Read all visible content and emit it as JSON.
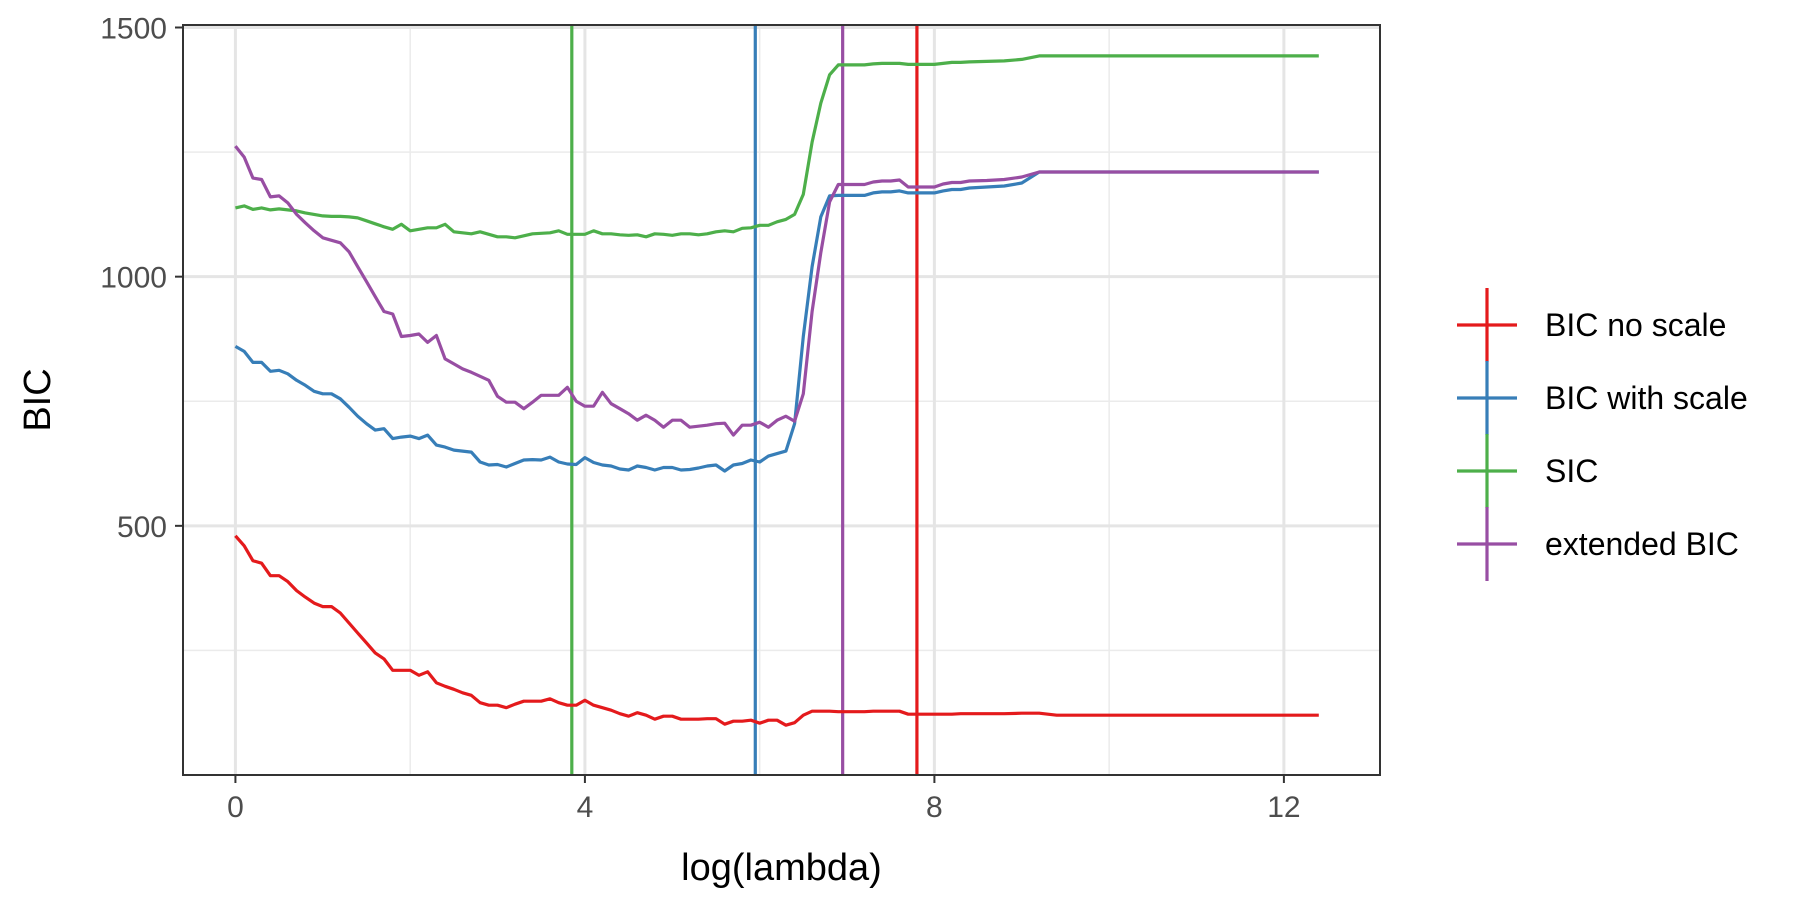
{
  "chart_data": {
    "type": "line",
    "xlabel": "log(lambda)",
    "ylabel": "BIC",
    "xlim": [
      -0.6,
      13.1
    ],
    "ylim": [
      0,
      1505
    ],
    "xticks": [
      0,
      4,
      8,
      12
    ],
    "yticks": [
      500,
      1000,
      1500
    ],
    "grid": true,
    "legend_position": "right",
    "x": [
      0,
      0.1,
      0.2,
      0.3,
      0.4,
      0.5,
      0.6,
      0.7,
      0.8,
      0.9,
      1.0,
      1.1,
      1.2,
      1.3,
      1.4,
      1.5,
      1.6,
      1.7,
      1.8,
      1.9,
      2.0,
      2.1,
      2.2,
      2.3,
      2.4,
      2.5,
      2.6,
      2.7,
      2.8,
      2.9,
      3.0,
      3.1,
      3.2,
      3.3,
      3.4,
      3.5,
      3.6,
      3.7,
      3.8,
      3.9,
      4.0,
      4.1,
      4.2,
      4.3,
      4.4,
      4.5,
      4.6,
      4.7,
      4.8,
      4.9,
      5.0,
      5.1,
      5.2,
      5.3,
      5.4,
      5.5,
      5.6,
      5.7,
      5.8,
      5.9,
      6.0,
      6.1,
      6.2,
      6.3,
      6.4,
      6.5,
      6.6,
      6.7,
      6.8,
      6.9,
      7.0,
      7.1,
      7.2,
      7.3,
      7.4,
      7.5,
      7.6,
      7.7,
      7.8,
      7.9,
      8.0,
      8.1,
      8.2,
      8.3,
      8.4,
      8.6,
      8.8,
      9.0,
      9.2,
      9.4,
      9.6,
      9.8,
      10.0,
      10.2,
      10.4,
      10.6,
      10.8,
      11.0,
      11.2,
      11.4,
      11.6,
      11.8,
      12.0,
      12.2,
      12.4
    ],
    "series": [
      {
        "name": "BIC no scale",
        "color": "#e41a1c",
        "values": [
          480,
          460,
          430,
          425,
          400,
          400,
          388,
          370,
          357,
          345,
          338,
          338,
          325,
          305,
          285,
          265,
          245,
          233,
          210,
          210,
          210,
          200,
          207,
          185,
          178,
          172,
          165,
          160,
          145,
          140,
          140,
          135,
          142,
          148,
          148,
          148,
          153,
          145,
          140,
          140,
          150,
          140,
          135,
          130,
          123,
          118,
          125,
          120,
          112,
          118,
          118,
          112,
          112,
          112,
          113,
          113,
          102,
          108,
          108,
          110,
          104,
          110,
          110,
          100,
          105,
          120,
          128,
          128,
          128,
          127,
          127,
          127,
          127,
          128,
          128,
          128,
          128,
          122,
          122,
          122,
          122,
          122,
          122,
          123,
          123,
          123,
          123,
          124,
          124,
          120,
          120,
          120,
          120,
          120,
          120,
          120,
          120,
          120,
          120,
          120,
          120,
          120,
          120,
          120,
          120
        ]
      },
      {
        "name": "BIC with scale",
        "color": "#377eb8",
        "values": [
          860,
          850,
          828,
          828,
          810,
          812,
          805,
          792,
          782,
          770,
          765,
          765,
          755,
          738,
          720,
          705,
          692,
          695,
          675,
          678,
          680,
          675,
          682,
          662,
          658,
          652,
          650,
          648,
          628,
          622,
          623,
          618,
          625,
          632,
          633,
          632,
          638,
          628,
          624,
          623,
          637,
          627,
          622,
          620,
          614,
          612,
          620,
          617,
          612,
          617,
          617,
          612,
          613,
          616,
          620,
          622,
          610,
          622,
          625,
          632,
          628,
          640,
          645,
          650,
          705,
          880,
          1020,
          1120,
          1162,
          1163,
          1163,
          1163,
          1163,
          1168,
          1170,
          1170,
          1172,
          1168,
          1168,
          1168,
          1168,
          1172,
          1175,
          1175,
          1178,
          1180,
          1182,
          1188,
          1210,
          1210,
          1210,
          1210,
          1210,
          1210,
          1210,
          1210,
          1210,
          1210,
          1210,
          1210,
          1210,
          1210,
          1210,
          1210,
          1210
        ]
      },
      {
        "name": "SIC",
        "color": "#4daf4a",
        "values": [
          1138,
          1142,
          1135,
          1138,
          1134,
          1136,
          1134,
          1132,
          1128,
          1125,
          1122,
          1121,
          1121,
          1120,
          1118,
          1112,
          1106,
          1100,
          1095,
          1105,
          1092,
          1095,
          1098,
          1098,
          1105,
          1090,
          1088,
          1086,
          1090,
          1085,
          1080,
          1080,
          1078,
          1082,
          1086,
          1087,
          1088,
          1092,
          1085,
          1085,
          1085,
          1092,
          1086,
          1086,
          1084,
          1083,
          1084,
          1080,
          1086,
          1085,
          1083,
          1086,
          1086,
          1084,
          1086,
          1090,
          1092,
          1090,
          1097,
          1098,
          1103,
          1103,
          1110,
          1115,
          1125,
          1165,
          1270,
          1348,
          1405,
          1425,
          1425,
          1425,
          1425,
          1427,
          1428,
          1428,
          1428,
          1426,
          1426,
          1426,
          1426,
          1428,
          1430,
          1430,
          1431,
          1432,
          1433,
          1436,
          1443,
          1443,
          1443,
          1443,
          1443,
          1443,
          1443,
          1443,
          1443,
          1443,
          1443,
          1443,
          1443,
          1443,
          1443,
          1443,
          1443
        ]
      },
      {
        "name": "extended BIC",
        "color": "#984ea3",
        "values": [
          1262,
          1240,
          1198,
          1195,
          1160,
          1162,
          1148,
          1125,
          1108,
          1092,
          1078,
          1073,
          1068,
          1050,
          1020,
          990,
          960,
          930,
          925,
          880,
          882,
          885,
          868,
          882,
          835,
          825,
          815,
          808,
          800,
          792,
          760,
          748,
          748,
          735,
          748,
          762,
          762,
          762,
          778,
          750,
          740,
          740,
          768,
          745,
          735,
          725,
          712,
          722,
          712,
          698,
          712,
          712,
          698,
          700,
          702,
          705,
          706,
          682,
          702,
          702,
          708,
          698,
          712,
          720,
          710,
          765,
          930,
          1048,
          1150,
          1185,
          1185,
          1185,
          1185,
          1190,
          1192,
          1192,
          1194,
          1180,
          1180,
          1180,
          1180,
          1186,
          1189,
          1189,
          1192,
          1193,
          1195,
          1200,
          1210,
          1210,
          1210,
          1210,
          1210,
          1210,
          1210,
          1210,
          1210,
          1210,
          1210,
          1210,
          1210,
          1210,
          1210,
          1210,
          1210
        ]
      }
    ],
    "vlines": [
      {
        "series": "SIC",
        "x": 3.85,
        "color": "#4daf4a"
      },
      {
        "series": "BIC with scale",
        "x": 5.95,
        "color": "#377eb8"
      },
      {
        "series": "extended BIC",
        "x": 6.95,
        "color": "#984ea3"
      },
      {
        "series": "BIC no scale",
        "x": 7.8,
        "color": "#e41a1c"
      }
    ]
  }
}
